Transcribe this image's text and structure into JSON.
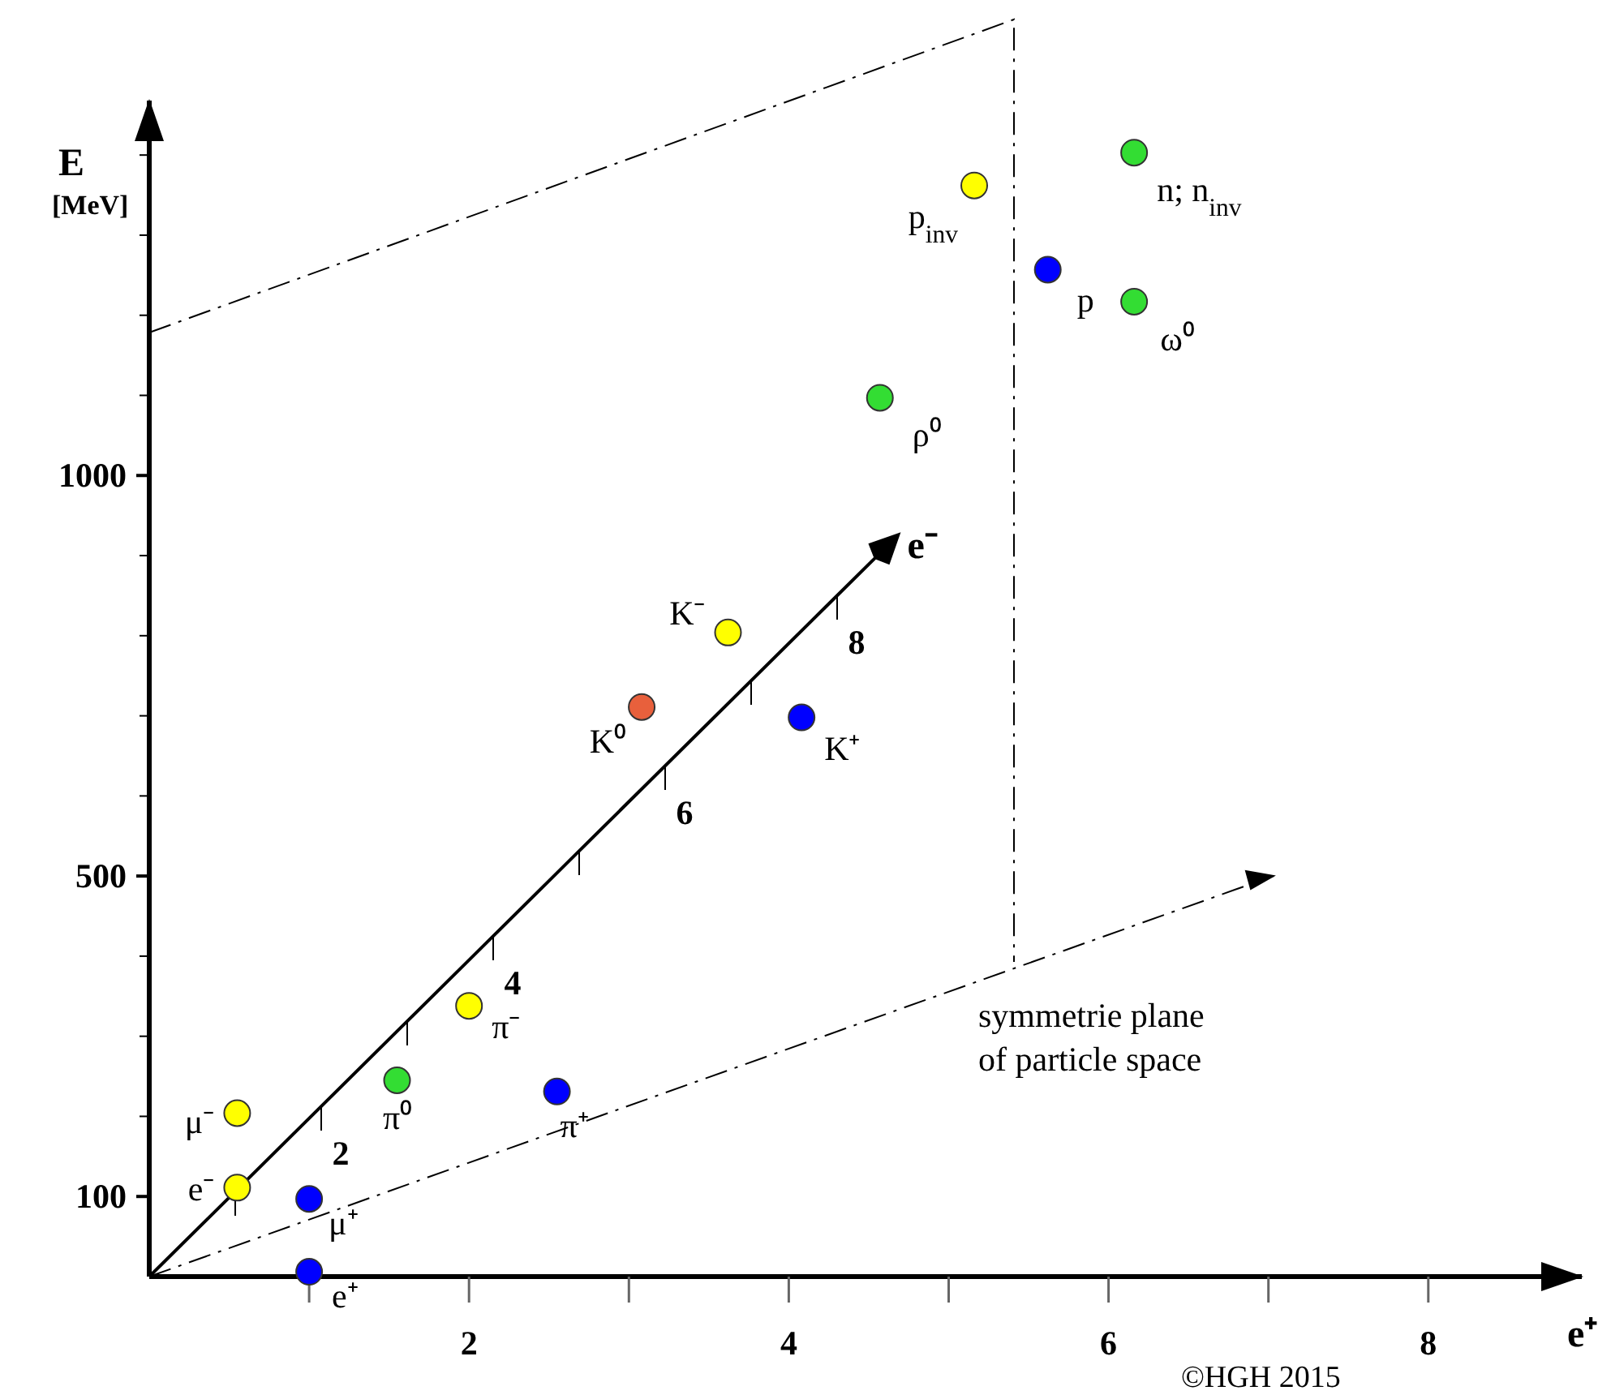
{
  "chart_data": {
    "type": "scatter",
    "xlabel": "e⁺",
    "ylabel": "E [MeV]",
    "xlim": [
      0,
      8.96
    ],
    "ylim": [
      0,
      1468
    ],
    "xticks": [
      {
        "value": 1,
        "label": null
      },
      2,
      {
        "value": 3,
        "label": null
      },
      4,
      {
        "value": 5,
        "label": null
      },
      6,
      {
        "value": 7,
        "label": null
      },
      8
    ],
    "yticks": [
      100,
      {
        "value": 200,
        "label": null
      },
      {
        "value": 300,
        "label": null
      },
      {
        "value": 400,
        "label": null
      },
      500,
      {
        "value": 600,
        "label": null
      },
      {
        "value": 700,
        "label": null
      },
      {
        "value": 800,
        "label": null
      },
      {
        "value": 900,
        "label": null
      },
      1000,
      {
        "value": 1100,
        "label": null
      },
      {
        "value": 1200,
        "label": null
      },
      {
        "value": 1300,
        "label": null
      },
      {
        "value": 1400,
        "label": null
      }
    ],
    "grid": false,
    "marker": "circle",
    "series": [
      {
        "color": "#ffff00",
        "x": [
          0.55,
          0.55,
          2.0,
          3.62,
          5.16
        ],
        "values": [
          111,
          204,
          338,
          804,
          1362
        ],
        "value_labels": [
          "e⁻",
          "μ⁻",
          "π⁻",
          "K⁻",
          "p$_{inv}$"
        ]
      },
      {
        "color": "#0000ff",
        "x": [
          1.0,
          1.0,
          2.55,
          4.08,
          5.62
        ],
        "values": [
          6,
          97,
          231,
          698,
          1257
        ],
        "value_labels": [
          "e⁺",
          "μ⁺",
          "π⁺",
          "K⁺",
          "p"
        ]
      },
      {
        "color": "#33dd33",
        "x": [
          1.55,
          4.57,
          6.16,
          6.16
        ],
        "values": [
          245,
          1097,
          1217,
          1403
        ],
        "value_labels": [
          "π⁰",
          "ρ⁰",
          "ω⁰",
          "n; n$_{inv}$"
        ]
      },
      {
        "color": "#e8603c",
        "x": [
          3.08
        ],
        "values": [
          711
        ],
        "value_labels": [
          "K⁰"
        ]
      }
    ],
    "annotations": [
      "symmetrie plane of particle space",
      "©HGH 2015",
      "2",
      "4",
      "6",
      "8",
      "e⁻"
    ]
  }
}
